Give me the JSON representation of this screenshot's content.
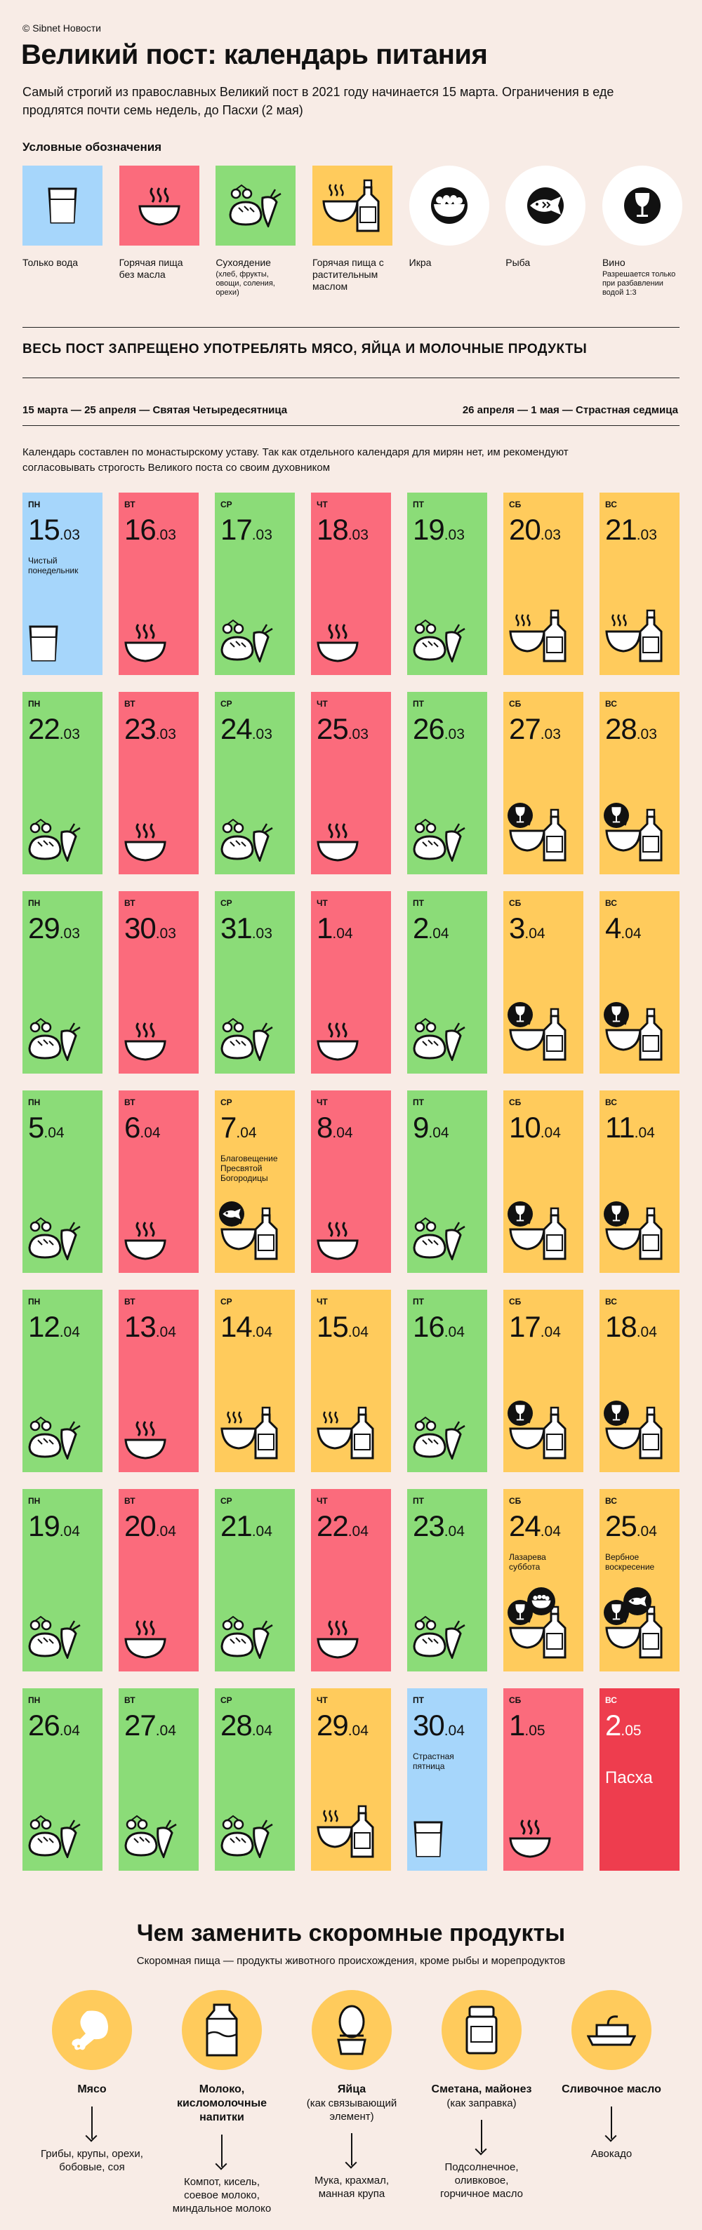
{
  "copyright": "© Sibnet Новости",
  "title": "Великий пост: календарь питания",
  "intro": "Самый строгий из православных Великий пост в 2021 году начинается 15 марта. Ограничения в еде продлятся почти семь недель, до Пасхи (2 мая)",
  "legend_title": "Условные обозначения",
  "colors": {
    "water": "#a6d6fb",
    "hot": "#fb6b7c",
    "dry": "#8bdc78",
    "oil": "#ffcb5c",
    "pascha": "#ee3d4e",
    "circle": "#ffffff",
    "bg": "#f8ece6"
  },
  "legend": [
    {
      "label": "Только вода",
      "sub": "",
      "color": "water",
      "icon": "glass-icon"
    },
    {
      "label": "Горячая пища без масла",
      "sub": "",
      "color": "hot",
      "icon": "hot-bowl-icon"
    },
    {
      "label": "Сухоядение",
      "sub": "(хлеб, фрукты, овощи, соления, орехи)",
      "color": "dry",
      "icon": "dry-food-icon"
    },
    {
      "label": "Горячая пища с растительным маслом",
      "sub": "",
      "color": "oil",
      "icon": "bowl-oil-icon"
    },
    {
      "label": "Икра",
      "sub": "",
      "color": "circle",
      "icon": "caviar-icon"
    },
    {
      "label": "Рыба",
      "sub": "",
      "color": "circle",
      "icon": "fish-icon"
    },
    {
      "label": "Вино",
      "sub": "Разрешается только при разбавлении водой 1:3",
      "color": "circle",
      "icon": "wine-icon"
    }
  ],
  "ban": "ВЕСЬ ПОСТ ЗАПРЕЩЕНО УПОТРЕБЛЯТЬ МЯСО, ЯЙЦА И МОЛОЧНЫЕ ПРОДУКТЫ",
  "period_left": "15 марта — 25 апреля — Святая Четыредесятница",
  "period_right": "26 апреля — 1 мая — Страстная седмица",
  "note": "Календарь составлен по монастырскому уставу. Так как отдельного календаря для мирян нет, им рекомендуют согласовывать строгость Великого поста со своим духовником",
  "days": [
    {
      "wd": "ПН",
      "d": "15",
      "m": ".03",
      "type": "water",
      "note": "Чистый понедельник",
      "extra": ""
    },
    {
      "wd": "ВТ",
      "d": "16",
      "m": ".03",
      "type": "hot",
      "note": "",
      "extra": ""
    },
    {
      "wd": "СР",
      "d": "17",
      "m": ".03",
      "type": "dry",
      "note": "",
      "extra": ""
    },
    {
      "wd": "ЧТ",
      "d": "18",
      "m": ".03",
      "type": "hot",
      "note": "",
      "extra": ""
    },
    {
      "wd": "ПТ",
      "d": "19",
      "m": ".03",
      "type": "dry",
      "note": "",
      "extra": ""
    },
    {
      "wd": "СБ",
      "d": "20",
      "m": ".03",
      "type": "oil",
      "note": "",
      "extra": ""
    },
    {
      "wd": "ВС",
      "d": "21",
      "m": ".03",
      "type": "oil",
      "note": "",
      "extra": ""
    },
    {
      "wd": "ПН",
      "d": "22",
      "m": ".03",
      "type": "dry",
      "note": "",
      "extra": ""
    },
    {
      "wd": "ВТ",
      "d": "23",
      "m": ".03",
      "type": "hot",
      "note": "",
      "extra": ""
    },
    {
      "wd": "СР",
      "d": "24",
      "m": ".03",
      "type": "dry",
      "note": "",
      "extra": ""
    },
    {
      "wd": "ЧТ",
      "d": "25",
      "m": ".03",
      "type": "hot",
      "note": "",
      "extra": ""
    },
    {
      "wd": "ПТ",
      "d": "26",
      "m": ".03",
      "type": "dry",
      "note": "",
      "extra": ""
    },
    {
      "wd": "СБ",
      "d": "27",
      "m": ".03",
      "type": "oil",
      "note": "",
      "extra": "wine"
    },
    {
      "wd": "ВС",
      "d": "28",
      "m": ".03",
      "type": "oil",
      "note": "",
      "extra": "wine"
    },
    {
      "wd": "ПН",
      "d": "29",
      "m": ".03",
      "type": "dry",
      "note": "",
      "extra": ""
    },
    {
      "wd": "ВТ",
      "d": "30",
      "m": ".03",
      "type": "hot",
      "note": "",
      "extra": ""
    },
    {
      "wd": "СР",
      "d": "31",
      "m": ".03",
      "type": "dry",
      "note": "",
      "extra": ""
    },
    {
      "wd": "ЧТ",
      "d": "1",
      "m": ".04",
      "type": "hot",
      "note": "",
      "extra": ""
    },
    {
      "wd": "ПТ",
      "d": "2",
      "m": ".04",
      "type": "dry",
      "note": "",
      "extra": ""
    },
    {
      "wd": "СБ",
      "d": "3",
      "m": ".04",
      "type": "oil",
      "note": "",
      "extra": "wine"
    },
    {
      "wd": "ВС",
      "d": "4",
      "m": ".04",
      "type": "oil",
      "note": "",
      "extra": "wine"
    },
    {
      "wd": "ПН",
      "d": "5",
      "m": ".04",
      "type": "dry",
      "note": "",
      "extra": ""
    },
    {
      "wd": "ВТ",
      "d": "6",
      "m": ".04",
      "type": "hot",
      "note": "",
      "extra": ""
    },
    {
      "wd": "СР",
      "d": "7",
      "m": ".04",
      "type": "oil",
      "note": "Благовещение Пресвятой Богородицы",
      "extra": "fish"
    },
    {
      "wd": "ЧТ",
      "d": "8",
      "m": ".04",
      "type": "hot",
      "note": "",
      "extra": ""
    },
    {
      "wd": "ПТ",
      "d": "9",
      "m": ".04",
      "type": "dry",
      "note": "",
      "extra": ""
    },
    {
      "wd": "СБ",
      "d": "10",
      "m": ".04",
      "type": "oil",
      "note": "",
      "extra": "wine"
    },
    {
      "wd": "ВС",
      "d": "11",
      "m": ".04",
      "type": "oil",
      "note": "",
      "extra": "wine"
    },
    {
      "wd": "ПН",
      "d": "12",
      "m": ".04",
      "type": "dry",
      "note": "",
      "extra": ""
    },
    {
      "wd": "ВТ",
      "d": "13",
      "m": ".04",
      "type": "hot",
      "note": "",
      "extra": ""
    },
    {
      "wd": "СР",
      "d": "14",
      "m": ".04",
      "type": "oil",
      "note": "",
      "extra": ""
    },
    {
      "wd": "ЧТ",
      "d": "15",
      "m": ".04",
      "type": "oil",
      "note": "",
      "extra": ""
    },
    {
      "wd": "ПТ",
      "d": "16",
      "m": ".04",
      "type": "dry",
      "note": "",
      "extra": ""
    },
    {
      "wd": "СБ",
      "d": "17",
      "m": ".04",
      "type": "oil",
      "note": "",
      "extra": "wine"
    },
    {
      "wd": "ВС",
      "d": "18",
      "m": ".04",
      "type": "oil",
      "note": "",
      "extra": "wine"
    },
    {
      "wd": "ПН",
      "d": "19",
      "m": ".04",
      "type": "dry",
      "note": "",
      "extra": ""
    },
    {
      "wd": "ВТ",
      "d": "20",
      "m": ".04",
      "type": "hot",
      "note": "",
      "extra": ""
    },
    {
      "wd": "СР",
      "d": "21",
      "m": ".04",
      "type": "dry",
      "note": "",
      "extra": ""
    },
    {
      "wd": "ЧТ",
      "d": "22",
      "m": ".04",
      "type": "hot",
      "note": "",
      "extra": ""
    },
    {
      "wd": "ПТ",
      "d": "23",
      "m": ".04",
      "type": "dry",
      "note": "",
      "extra": ""
    },
    {
      "wd": "СБ",
      "d": "24",
      "m": ".04",
      "type": "oil",
      "note": "Лазарева суббота",
      "extra": "wine-caviar"
    },
    {
      "wd": "ВС",
      "d": "25",
      "m": ".04",
      "type": "oil",
      "note": "Вербное воскресение",
      "extra": "wine-fish"
    },
    {
      "wd": "ПН",
      "d": "26",
      "m": ".04",
      "type": "dry",
      "note": "",
      "extra": ""
    },
    {
      "wd": "ВТ",
      "d": "27",
      "m": ".04",
      "type": "dry",
      "note": "",
      "extra": ""
    },
    {
      "wd": "СР",
      "d": "28",
      "m": ".04",
      "type": "dry",
      "note": "",
      "extra": ""
    },
    {
      "wd": "ЧТ",
      "d": "29",
      "m": ".04",
      "type": "oil",
      "note": "",
      "extra": ""
    },
    {
      "wd": "ПТ",
      "d": "30",
      "m": ".04",
      "type": "water",
      "note": "Страстная пятница",
      "extra": ""
    },
    {
      "wd": "СБ",
      "d": "1",
      "m": ".05",
      "type": "hot",
      "note": "",
      "extra": ""
    },
    {
      "wd": "ВС",
      "d": "2",
      "m": ".05",
      "type": "pascha",
      "note": "Пасха",
      "extra": ""
    }
  ],
  "subs_title": "Чем заменить скоромные продукты",
  "subs_note": "Скоромная пища — продукты животного происхождения, кроме рыбы и морепродуктов",
  "subs": [
    {
      "name": "Мясо",
      "qual": "",
      "alt": "Грибы, крупы, орехи, бобовые, соя",
      "icon": "chicken-leg-icon"
    },
    {
      "name": "Молоко, кисломолочные напитки",
      "qual": "",
      "alt": "Компот, кисель, соевое молоко, миндальное молоко",
      "icon": "milk-carton-icon"
    },
    {
      "name": "Яйца",
      "qual": "(как связывающий элемент)",
      "alt": "Мука, крахмал, манная крупа",
      "icon": "egg-icon"
    },
    {
      "name": "Сметана, майонез",
      "qual": "(как заправка)",
      "alt": "Подсолнечное, оливковое, горчичное масло",
      "icon": "jar-icon"
    },
    {
      "name": "Сливочное масло",
      "qual": "",
      "alt": "Авокадо",
      "icon": "butter-icon"
    }
  ]
}
